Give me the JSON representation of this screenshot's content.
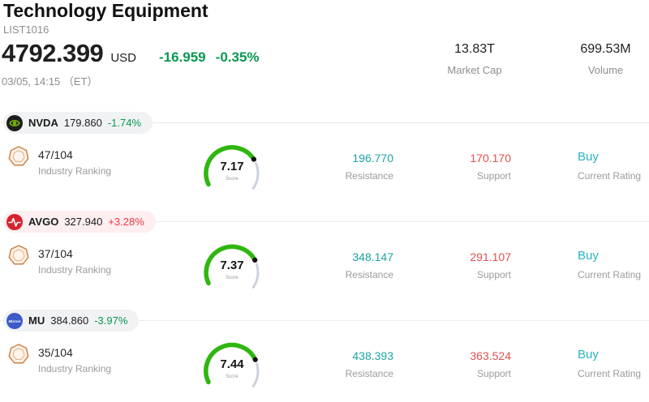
{
  "header": {
    "title": "Technology Equipment",
    "list_id": "LIST1016",
    "price": "4792.399",
    "currency": "USD",
    "change": "-16.959",
    "change_pct": "-0.35%",
    "timestamp": "03/05, 14:15 （ET）",
    "market_cap": {
      "value": "13.83T",
      "label": "Market Cap"
    },
    "volume": {
      "value": "699.53M",
      "label": "Volume"
    }
  },
  "labels": {
    "ranking": "Industry Ranking",
    "score": "Score",
    "resistance": "Resistance",
    "support": "Support",
    "rating": "Current Rating"
  },
  "colors": {
    "up_red": "#f23645",
    "down_green": "#089950",
    "resistance": "#1aa5a0",
    "support": "#e14f4f",
    "buy": "#2bb3c0",
    "gauge_green": "#2fb60f",
    "gauge_gray": "#ccd2dc"
  },
  "rows": [
    {
      "symbol": "NVDA",
      "price": "179.860",
      "change": "-1.74%",
      "change_color": "#089950",
      "badge_bg": "#f1f2f4",
      "logo_bg": "#1d1d1d",
      "ranking": "47/104",
      "score": "7.17",
      "resistance": "196.770",
      "support": "170.170",
      "rating": "Buy"
    },
    {
      "symbol": "AVGO",
      "price": "327.940",
      "change": "+3.28%",
      "change_color": "#f23645",
      "badge_bg": "#fdeef0",
      "logo_bg": "#d6232e",
      "ranking": "37/104",
      "score": "7.37",
      "resistance": "348.147",
      "support": "291.107",
      "rating": "Buy"
    },
    {
      "symbol": "MU",
      "price": "384.860",
      "change": "-3.97%",
      "change_color": "#089950",
      "badge_bg": "#f1f2f4",
      "logo_bg": "#3d5ac8",
      "ranking": "35/104",
      "score": "7.44",
      "resistance": "438.393",
      "support": "363.524",
      "rating": "Buy"
    }
  ]
}
